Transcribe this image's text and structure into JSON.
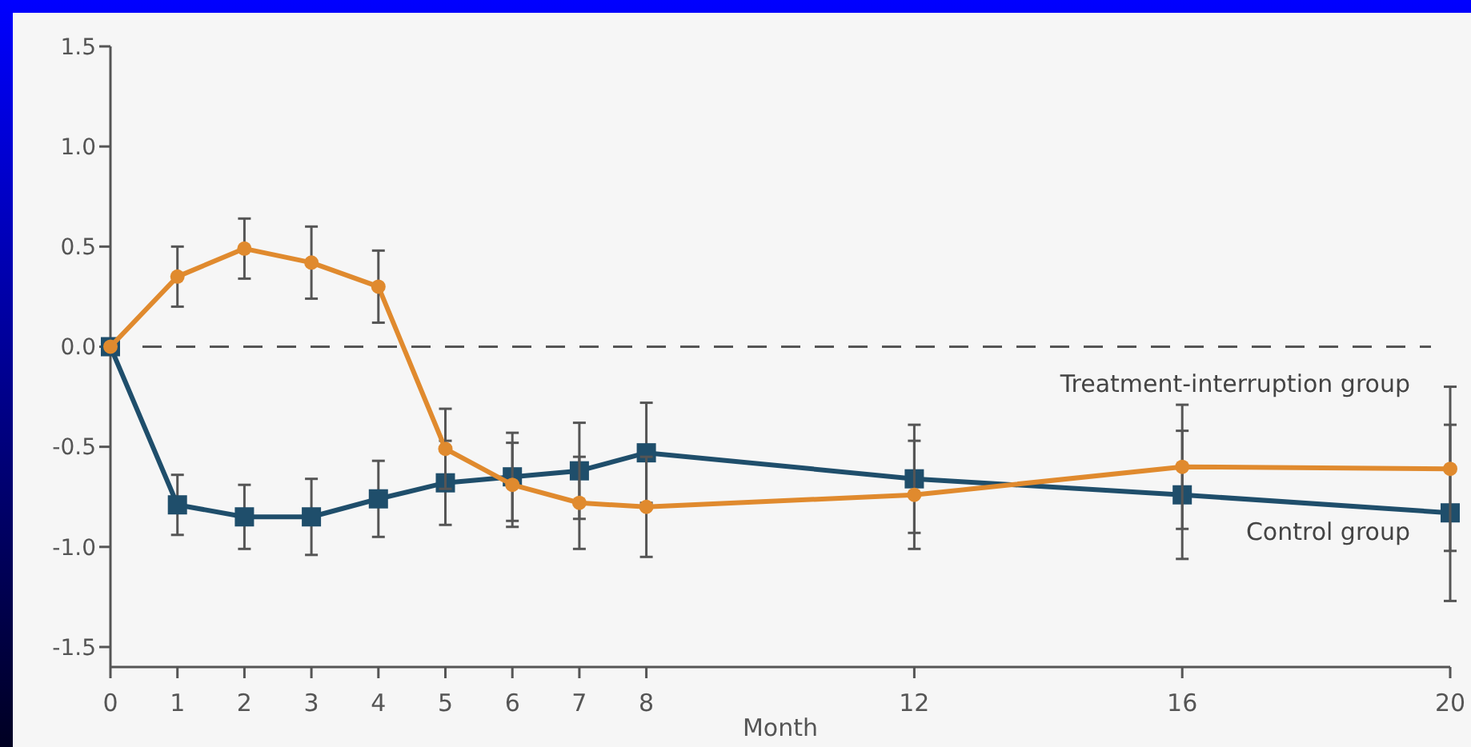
{
  "chart_data": {
    "type": "line",
    "xlabel": "Month",
    "x": [
      0,
      1,
      2,
      3,
      4,
      5,
      6,
      7,
      8,
      12,
      16,
      20
    ],
    "series": [
      {
        "name": "Treatment-interruption group",
        "color": "#e08a2e",
        "marker": "circle",
        "values": [
          0,
          0.35,
          0.49,
          0.42,
          0.3,
          -0.51,
          -0.69,
          -0.78,
          -0.8,
          -0.74,
          -0.6,
          -0.61
        ],
        "errors": [
          null,
          0.15,
          0.15,
          0.18,
          0.18,
          0.2,
          0.21,
          0.23,
          0.25,
          0.27,
          0.31,
          0.41
        ]
      },
      {
        "name": "Control group",
        "color": "#1f4e6b",
        "marker": "square",
        "values": [
          0,
          -0.79,
          -0.85,
          -0.85,
          -0.76,
          -0.68,
          -0.65,
          -0.62,
          -0.53,
          -0.66,
          -0.74,
          -0.83
        ],
        "errors": [
          null,
          0.15,
          0.16,
          0.19,
          0.19,
          0.21,
          0.22,
          0.24,
          0.25,
          0.27,
          0.32,
          0.44
        ]
      }
    ],
    "xlim": [
      0,
      20
    ],
    "xticks": [
      0,
      1,
      2,
      3,
      4,
      5,
      6,
      7,
      8,
      12,
      16,
      20
    ],
    "ylim": [
      -1.6,
      1.5
    ],
    "yticks": [
      {
        "value": -1.5,
        "label": "-1.5"
      },
      {
        "value": -1,
        "label": "-1.0"
      },
      {
        "value": -0.5,
        "label": "-0.5"
      },
      {
        "value": 0,
        "label": "0.0"
      },
      {
        "value": 0.5,
        "label": "0.5"
      },
      {
        "value": 1,
        "label": "1.0"
      },
      {
        "value": 1.5,
        "label": "1.5"
      }
    ],
    "ref_lines": [
      {
        "axis": "y",
        "value": 0,
        "line_style": "dashed",
        "color": "#555555"
      }
    ],
    "grid": false,
    "line_style": "solid"
  }
}
